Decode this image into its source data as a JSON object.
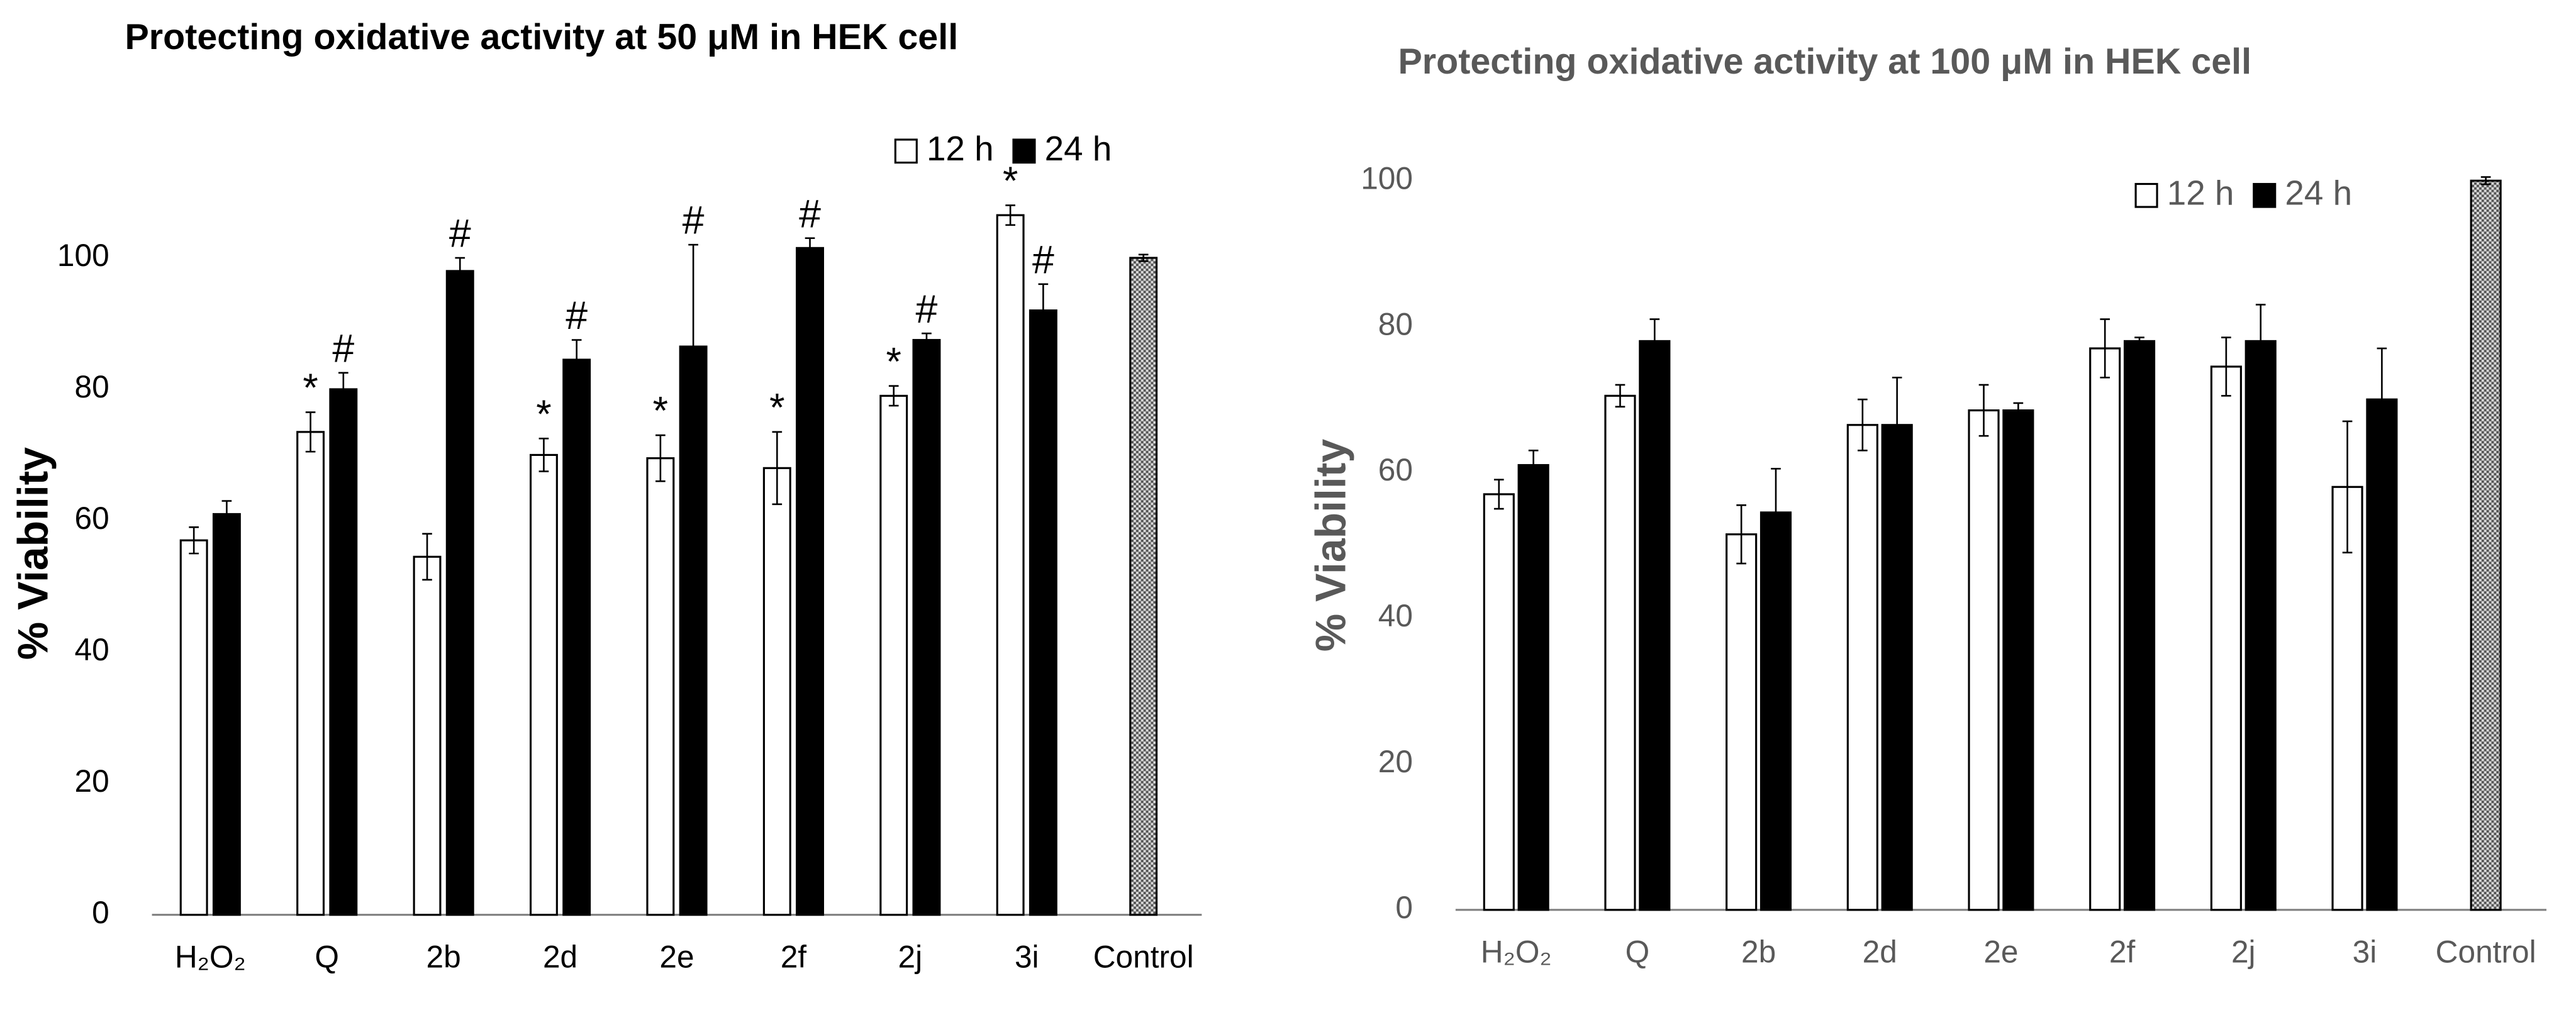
{
  "chart_data": [
    {
      "type": "bar",
      "title": "Protecting oxidative activity at 50 μM in HEK cell",
      "y_label": "% Viability",
      "categories": [
        "H₂O₂",
        "Q",
        "2b",
        "2d",
        "2e",
        "2f",
        "2j",
        "3i",
        "Control"
      ],
      "ylim": [
        0,
        110
      ],
      "yticks": [
        0,
        20,
        40,
        60,
        80,
        100
      ],
      "series": [
        {
          "name": "12 h",
          "color": "#ffffff",
          "values": [
            57,
            73.5,
            54.5,
            70,
            69.5,
            68,
            79,
            106.5,
            null
          ],
          "errors": [
            2,
            3,
            3.5,
            2.5,
            3.5,
            5.5,
            1.5,
            1.5,
            null
          ],
          "annotations": [
            null,
            "*",
            null,
            "*",
            "*",
            "*",
            "*",
            "*",
            null
          ]
        },
        {
          "name": "24 h",
          "color": "#000000",
          "values": [
            61,
            80,
            98,
            84.5,
            86.5,
            101.5,
            87.5,
            92,
            null
          ],
          "errors": [
            2,
            2.5,
            2,
            3,
            15.5,
            1.5,
            1,
            4,
            null
          ],
          "annotations": [
            null,
            "#",
            "#",
            "#",
            "#",
            "#",
            "#",
            "#",
            null
          ]
        },
        {
          "color": "#9a9a9a",
          "values": [
            null,
            null,
            null,
            null,
            null,
            null,
            null,
            null,
            100
          ],
          "errors": [
            null,
            null,
            null,
            null,
            null,
            null,
            null,
            null,
            0.5
          ]
        }
      ]
    },
    {
      "type": "bar",
      "title": "Protecting oxidative activity at 100 μM in HEK cell",
      "y_label": "% Viability",
      "categories": [
        "H₂O₂",
        "Q",
        "2b",
        "2d",
        "2e",
        "2f",
        "2j",
        "3i",
        "Control"
      ],
      "ylim": [
        0,
        100
      ],
      "yticks": [
        0,
        20,
        40,
        60,
        80,
        100
      ],
      "series": [
        {
          "name": "12 h",
          "color": "#ffffff",
          "values": [
            57,
            70.5,
            51.5,
            66.5,
            68.5,
            77,
            74.5,
            58,
            null
          ],
          "errors": [
            2,
            1.5,
            4,
            3.5,
            3.5,
            4,
            4,
            9,
            null
          ]
        },
        {
          "name": "24 h",
          "color": "#000000",
          "values": [
            61,
            78,
            54.5,
            66.5,
            68.5,
            78,
            78,
            70,
            null
          ],
          "errors": [
            2,
            3,
            6,
            6.5,
            1,
            0.5,
            5,
            7,
            null
          ]
        },
        {
          "color": "#9a9a9a",
          "values": [
            null,
            null,
            null,
            null,
            null,
            null,
            null,
            null,
            100
          ],
          "errors": [
            null,
            null,
            null,
            null,
            null,
            null,
            null,
            null,
            0.5
          ]
        }
      ]
    }
  ]
}
